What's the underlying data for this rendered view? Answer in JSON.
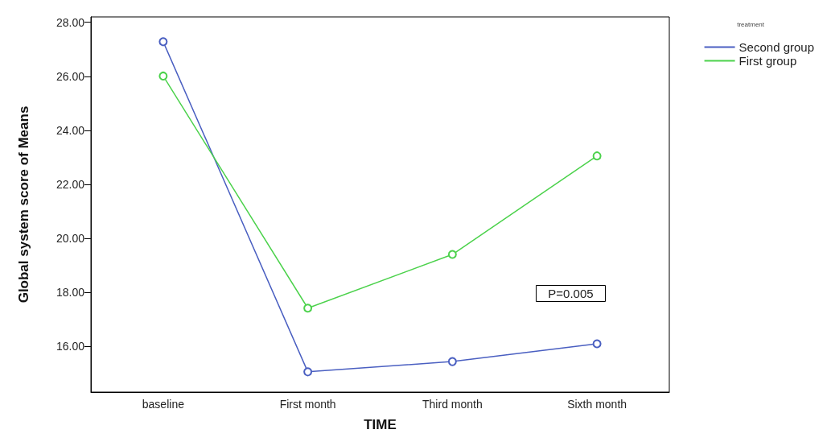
{
  "chart_data": {
    "type": "line",
    "xlabel": "TIME",
    "ylabel": "Global system score of Means",
    "legend_title": "treatment",
    "categories": [
      "baseline",
      "First month",
      "Third month",
      "Sixth month"
    ],
    "series": [
      {
        "name": "Second group",
        "color": "#4a5fc1",
        "values": [
          27.28,
          15.05,
          15.43,
          16.09
        ]
      },
      {
        "name": "First group",
        "color": "#4cd24c",
        "values": [
          26.01,
          17.41,
          19.4,
          23.05
        ]
      }
    ],
    "ylim": [
      14.3,
      28.2
    ],
    "yticks": [
      {
        "value": 16,
        "label": "16.00"
      },
      {
        "value": 18,
        "label": "18.00"
      },
      {
        "value": 20,
        "label": "20.00"
      },
      {
        "value": 22,
        "label": "22.00"
      },
      {
        "value": 24,
        "label": "24.00"
      },
      {
        "value": 26,
        "label": "26.00"
      },
      {
        "value": 28,
        "label": "28.00"
      }
    ],
    "grid": false,
    "legend": "top right",
    "marker": "circle",
    "line_style": "solid",
    "annotations": [
      "P=0.005"
    ]
  }
}
